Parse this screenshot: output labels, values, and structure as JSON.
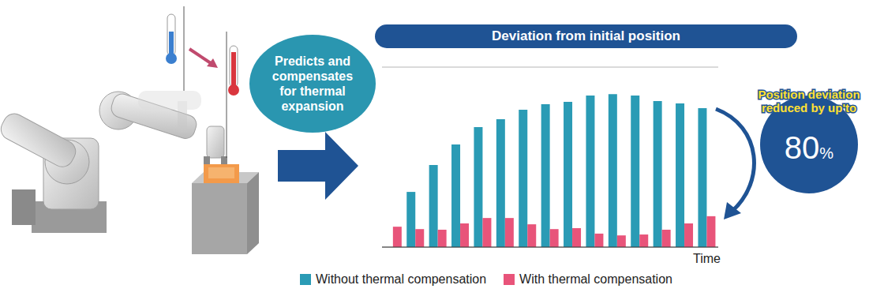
{
  "chart_data": {
    "type": "bar",
    "title": "Deviation from initial position",
    "x_label": "Time",
    "categories": [
      null,
      null,
      null,
      null,
      null,
      null,
      null,
      null,
      null,
      null,
      null,
      null,
      null,
      null,
      null
    ],
    "series": [
      {
        "name": "Without thermal compensation",
        "color": "#2a9bb5",
        "values": [
          null,
          1.84,
          2.74,
          3.42,
          4.0,
          4.26,
          4.58,
          4.76,
          4.84,
          5.05,
          5.1,
          5.05,
          4.87,
          4.79,
          4.63
        ]
      },
      {
        "name": "With thermal compensation",
        "color": "#e8547a",
        "values": [
          0.68,
          0.6,
          0.58,
          0.79,
          0.97,
          0.97,
          0.76,
          0.6,
          0.63,
          0.45,
          0.39,
          0.42,
          0.58,
          0.79,
          1.03
        ]
      }
    ],
    "ylim": [
      0,
      6
    ],
    "yticks": [
      0,
      1,
      2,
      3,
      4,
      5,
      6
    ],
    "grid": true,
    "tick_labels": false,
    "annotations": {
      "bubble": [
        "Predicts and",
        "compensates",
        "for thermal",
        "expansion"
      ],
      "callout": [
        "Position deviation",
        "reduced by up'to"
      ],
      "callout_value": {
        "value": 80,
        "label": "80%"
      }
    }
  }
}
